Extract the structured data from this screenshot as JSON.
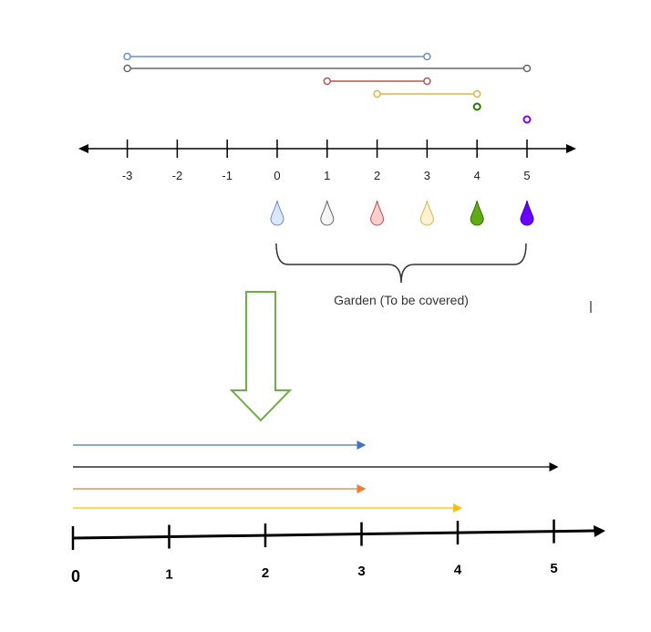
{
  "top_axis": {
    "ticks": [
      -3,
      -2,
      -1,
      0,
      1,
      2,
      3,
      4,
      5
    ],
    "tick_labels": [
      "-3",
      "-2",
      "-1",
      "0",
      "1",
      "2",
      "3",
      "4",
      "5"
    ]
  },
  "ranges": [
    {
      "start": -3,
      "end": 3,
      "color": "#6c8ebf"
    },
    {
      "start": -3,
      "end": 5,
      "color": "#666666"
    },
    {
      "start": 1,
      "end": 3,
      "color": "#b85450"
    },
    {
      "start": 2,
      "end": 4,
      "color": "#d6b656"
    },
    {
      "start": 4,
      "end": 4,
      "color": "#2d7600"
    },
    {
      "start": 5,
      "end": 5,
      "color": "#7f00ff"
    }
  ],
  "taps": [
    {
      "position": 0,
      "fill": "#dae8fc",
      "stroke": "#6c8ebf"
    },
    {
      "position": 1,
      "fill": "#f5f5f5",
      "stroke": "#666666"
    },
    {
      "position": 2,
      "fill": "#f8cecc",
      "stroke": "#b85450"
    },
    {
      "position": 3,
      "fill": "#fff2cc",
      "stroke": "#d6b656"
    },
    {
      "position": 4,
      "fill": "#60a917",
      "stroke": "#2d7600"
    },
    {
      "position": 5,
      "fill": "#6a00ff",
      "stroke": "#3700cc"
    }
  ],
  "garden_label": "Garden (To be covered)",
  "bottom_axis": {
    "ticks": [
      0,
      1,
      2,
      3,
      4,
      5
    ],
    "tick_labels": [
      "0",
      "1",
      "2",
      "3",
      "4",
      "5"
    ]
  },
  "arrows": [
    {
      "end": 3,
      "color": "#4472c4"
    },
    {
      "end": 5,
      "color": "#000000"
    },
    {
      "end": 3,
      "color": "#ed7d31"
    },
    {
      "end": 4,
      "color": "#ffc000"
    }
  ],
  "colors": {
    "down_arrow": "#70ad47"
  }
}
